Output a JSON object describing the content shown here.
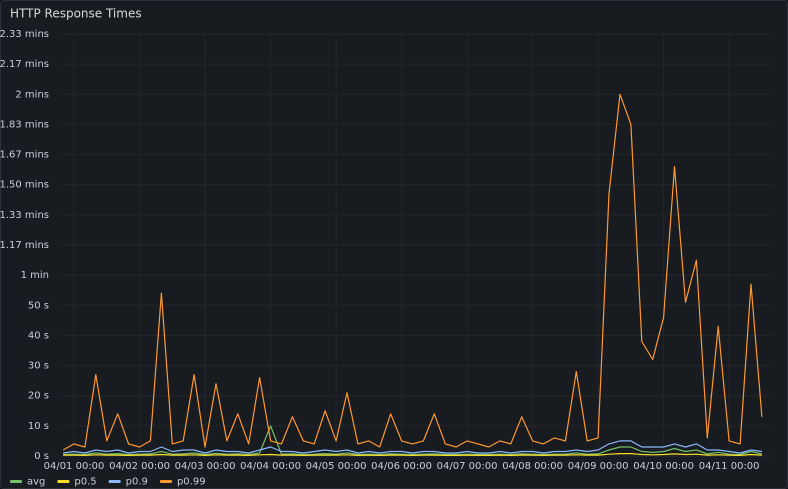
{
  "chart_data": {
    "type": "line",
    "title": "HTTP Response Times",
    "x": [
      -4,
      0,
      4,
      8,
      12,
      16,
      20,
      24,
      28,
      32,
      36,
      40,
      44,
      48,
      52,
      56,
      60,
      64,
      68,
      72,
      76,
      80,
      84,
      88,
      92,
      96,
      100,
      104,
      108,
      112,
      116,
      120,
      124,
      128,
      132,
      136,
      140,
      144,
      148,
      152,
      156,
      160,
      164,
      168,
      172,
      176,
      180,
      184,
      188,
      192,
      196,
      200,
      204,
      208,
      212,
      216,
      220,
      224,
      228,
      232,
      236,
      240,
      244,
      248,
      252
    ],
    "xlim": [
      -4.4,
      255.7
    ],
    "xticks": [
      {
        "value": 0,
        "label": "04/01 00:00"
      },
      {
        "value": 24,
        "label": "04/02 00:00"
      },
      {
        "value": 48,
        "label": "04/03 00:00"
      },
      {
        "value": 72,
        "label": "04/04 00:00"
      },
      {
        "value": 96,
        "label": "04/05 00:00"
      },
      {
        "value": 120,
        "label": "04/06 00:00"
      },
      {
        "value": 144,
        "label": "04/07 00:00"
      },
      {
        "value": 168,
        "label": "04/08 00:00"
      },
      {
        "value": 192,
        "label": "04/09 00:00"
      },
      {
        "value": 216,
        "label": "04/10 00:00"
      },
      {
        "value": 240,
        "label": "04/11 00:00"
      }
    ],
    "ylim": [
      0,
      140
    ],
    "yticks": [
      {
        "value": 0,
        "label": "0 s"
      },
      {
        "value": 10,
        "label": "10 s"
      },
      {
        "value": 20,
        "label": "20 s"
      },
      {
        "value": 30,
        "label": "30 s"
      },
      {
        "value": 40,
        "label": "40 s"
      },
      {
        "value": 50,
        "label": "50 s"
      },
      {
        "value": 60,
        "label": "1 min"
      },
      {
        "value": 70,
        "label": "1.17 mins"
      },
      {
        "value": 80,
        "label": "1.33 mins"
      },
      {
        "value": 90,
        "label": "1.50 mins"
      },
      {
        "value": 100,
        "label": "1.67 mins"
      },
      {
        "value": 110,
        "label": "1.83 mins"
      },
      {
        "value": 120,
        "label": "2 mins"
      },
      {
        "value": 130,
        "label": "2.17 mins"
      },
      {
        "value": 140,
        "label": "2.33 mins"
      }
    ],
    "grid": true,
    "legend": "bottom",
    "series": [
      {
        "name": "avg",
        "color": "#73bf69",
        "values": [
          0.5,
          0.6,
          0.5,
          1,
          0.6,
          0.8,
          0.5,
          0.6,
          0.7,
          1.5,
          0.6,
          0.7,
          1,
          0.5,
          0.9,
          0.6,
          0.7,
          0.5,
          1,
          10,
          0.6,
          0.7,
          0.5,
          0.6,
          0.8,
          0.6,
          1,
          0.5,
          0.6,
          0.5,
          0.7,
          0.6,
          0.5,
          0.6,
          0.7,
          0.5,
          0.5,
          0.6,
          0.5,
          0.5,
          0.6,
          0.5,
          0.7,
          0.6,
          0.5,
          0.6,
          0.6,
          1,
          0.6,
          0.7,
          2,
          3,
          3,
          1.5,
          1.2,
          1.5,
          2.5,
          1.5,
          2,
          0.7,
          1.2,
          0.6,
          0.5,
          1.5,
          0.7
        ]
      },
      {
        "name": "p0.5",
        "color": "#fade2a",
        "values": [
          0.3,
          0.3,
          0.2,
          0.4,
          0.3,
          0.3,
          0.2,
          0.3,
          0.3,
          0.5,
          0.3,
          0.3,
          0.4,
          0.2,
          0.4,
          0.3,
          0.3,
          0.2,
          0.4,
          0.5,
          0.3,
          0.3,
          0.2,
          0.3,
          0.3,
          0.3,
          0.4,
          0.2,
          0.3,
          0.2,
          0.3,
          0.3,
          0.2,
          0.3,
          0.3,
          0.2,
          0.2,
          0.3,
          0.2,
          0.2,
          0.3,
          0.2,
          0.3,
          0.3,
          0.2,
          0.3,
          0.3,
          0.4,
          0.3,
          0.3,
          0.6,
          0.8,
          0.8,
          0.5,
          0.4,
          0.5,
          0.7,
          0.5,
          0.6,
          0.3,
          0.4,
          0.3,
          0.2,
          0.5,
          0.3
        ]
      },
      {
        "name": "p0.9",
        "color": "#8ab8ff",
        "values": [
          1,
          1.5,
          1,
          2,
          1.5,
          2,
          1,
          1.5,
          1.5,
          3,
          1.5,
          2,
          2,
          1,
          2,
          1.5,
          1.5,
          1,
          2,
          3,
          1.5,
          1.5,
          1,
          1.5,
          2,
          1.5,
          2,
          1,
          1.5,
          1,
          1.5,
          1.5,
          1,
          1.5,
          1.5,
          1,
          1,
          1.5,
          1,
          1,
          1.5,
          1,
          1.5,
          1.5,
          1,
          1.5,
          1.5,
          2,
          1.5,
          2,
          4,
          5,
          5,
          3,
          3,
          3,
          4,
          3,
          4,
          2,
          2,
          1.5,
          1,
          2,
          1.5
        ]
      },
      {
        "name": "p0.99",
        "color": "#ff9830",
        "values": [
          2,
          4,
          3,
          27,
          5,
          14,
          4,
          3,
          5,
          54,
          4,
          5,
          27,
          3,
          24,
          5,
          14,
          4,
          26,
          5,
          4,
          13,
          5,
          4,
          15,
          5,
          21,
          4,
          5,
          3,
          14,
          5,
          4,
          5,
          14,
          4,
          3,
          5,
          4,
          3,
          5,
          4,
          13,
          5,
          4,
          6,
          5,
          28,
          5,
          6,
          87,
          120,
          110,
          38,
          32,
          46,
          96,
          51,
          65,
          6,
          43,
          5,
          4,
          57,
          13
        ]
      }
    ]
  }
}
